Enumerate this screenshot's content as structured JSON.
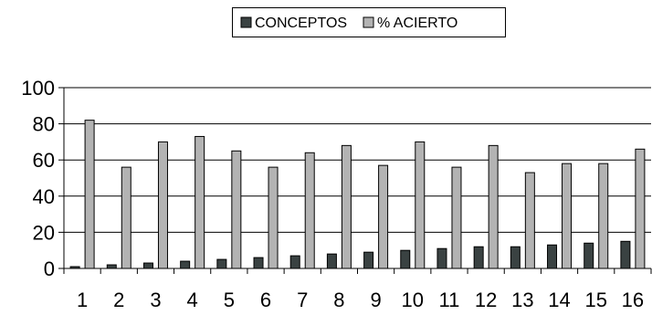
{
  "chart_data": {
    "type": "bar",
    "categories": [
      "1",
      "2",
      "3",
      "4",
      "5",
      "6",
      "7",
      "8",
      "9",
      "10",
      "11",
      "12",
      "13",
      "14",
      "15",
      "16"
    ],
    "series": [
      {
        "name": "CONCEPTOS",
        "color": "#3a4242",
        "values": [
          1,
          2,
          3,
          4,
          5,
          6,
          7,
          8,
          9,
          10,
          11,
          12,
          12,
          13,
          14,
          15
        ]
      },
      {
        "name": "% ACIERTO",
        "color": "#b3b3b3",
        "values": [
          82,
          56,
          70,
          73,
          65,
          56,
          64,
          68,
          57,
          70,
          56,
          68,
          53,
          58,
          58,
          66
        ]
      }
    ],
    "ylim": [
      0,
      100
    ],
    "yticks": [
      0,
      20,
      40,
      60,
      80,
      100
    ],
    "grid": true,
    "legend_position": "top-center",
    "xlabel": "",
    "ylabel": "",
    "title": ""
  }
}
